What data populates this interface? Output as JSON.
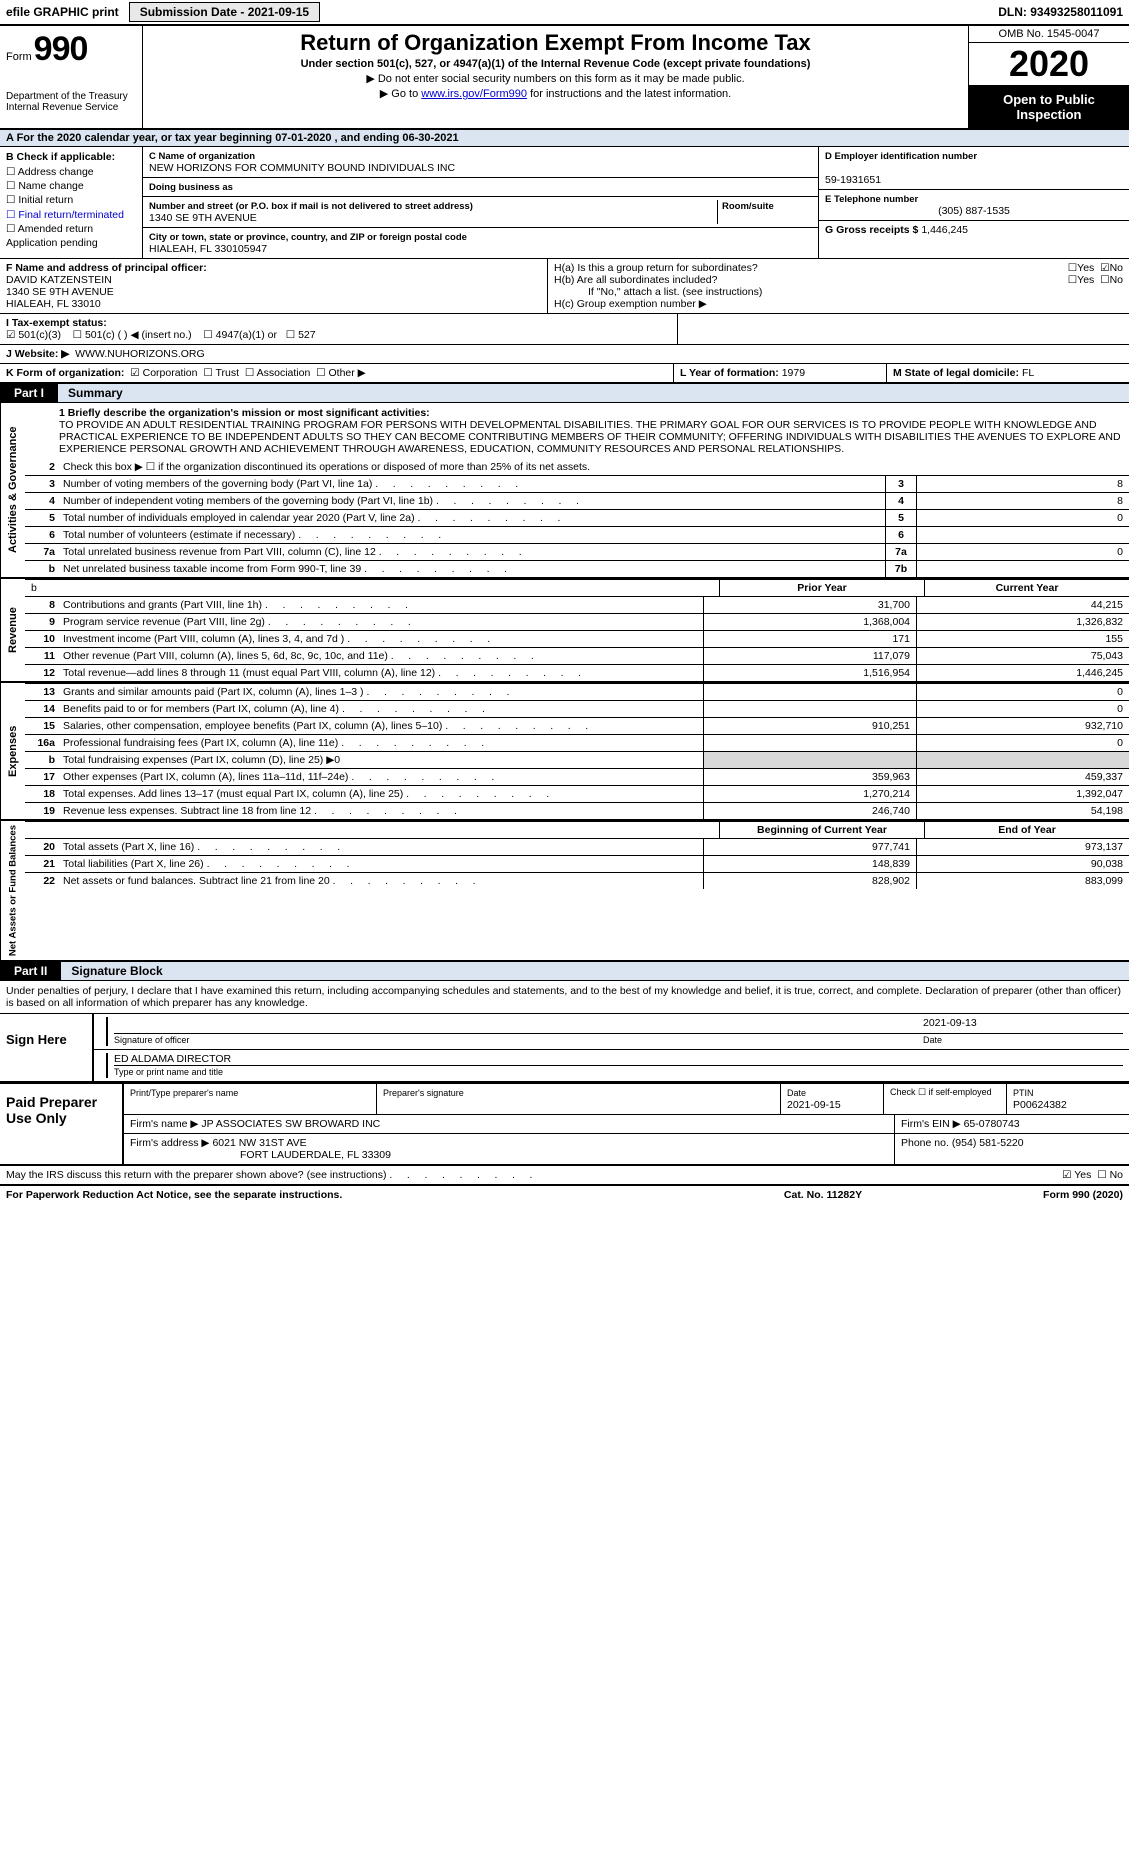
{
  "topbar": {
    "efile": "efile GRAPHIC print",
    "submission": "Submission Date - 2021-09-15",
    "dln": "DLN: 93493258011091"
  },
  "header": {
    "form_word": "Form",
    "form_no": "990",
    "dept1": "Department of the Treasury",
    "dept2": "Internal Revenue Service",
    "title": "Return of Organization Exempt From Income Tax",
    "sub": "Under section 501(c), 527, or 4947(a)(1) of the Internal Revenue Code (except private foundations)",
    "note1": "▶ Do not enter social security numbers on this form as it may be made public.",
    "note2_pre": "▶ Go to ",
    "note2_link": "www.irs.gov/Form990",
    "note2_post": " for instructions and the latest information.",
    "omb": "OMB No. 1545-0047",
    "year": "2020",
    "open": "Open to Public Inspection"
  },
  "rowA": "A   For the 2020 calendar year, or tax year beginning 07-01-2020   , and ending 06-30-2021",
  "sectionB": {
    "label": "B Check if applicable:",
    "opts": [
      "Address change",
      "Name change",
      "Initial return",
      "Final return/terminated",
      "Amended return",
      "Application pending"
    ]
  },
  "sectionC": {
    "name_lbl": "C Name of organization",
    "name": "NEW HORIZONS FOR COMMUNITY BOUND INDIVIDUALS INC",
    "dba_lbl": "Doing business as",
    "addr_lbl": "Number and street (or P.O. box if mail is not delivered to street address)",
    "room_lbl": "Room/suite",
    "addr": "1340 SE 9TH AVENUE",
    "city_lbl": "City or town, state or province, country, and ZIP or foreign postal code",
    "city": "HIALEAH, FL   330105947"
  },
  "sectionD": {
    "lbl": "D Employer identification number",
    "val": "59-1931651"
  },
  "sectionE": {
    "lbl": "E Telephone number",
    "val": "(305) 887-1535"
  },
  "sectionG": {
    "lbl": "G Gross receipts $",
    "val": "1,446,245"
  },
  "sectionF": {
    "lbl": "F  Name and address of principal officer:",
    "l1": "DAVID KATZENSTEIN",
    "l2": "1340 SE 9TH AVENUE",
    "l3": "HIALEAH, FL  33010"
  },
  "sectionH": {
    "a": "H(a)  Is this a group return for subordinates?",
    "b": "H(b)  Are all subordinates included?",
    "bnote": "If \"No,\" attach a list. (see instructions)",
    "c": "H(c)  Group exemption number ▶",
    "yes": "Yes",
    "no": "No"
  },
  "sectionI": {
    "lbl": "I   Tax-exempt status:",
    "o1": "501(c)(3)",
    "o2": "501(c) (  ) ◀ (insert no.)",
    "o3": "4947(a)(1) or",
    "o4": "527"
  },
  "sectionJ": {
    "lbl": "J   Website: ▶",
    "val": "WWW.NUHORIZONS.ORG"
  },
  "sectionK": {
    "lbl": "K Form of organization:",
    "o1": "Corporation",
    "o2": "Trust",
    "o3": "Association",
    "o4": "Other ▶"
  },
  "sectionL": {
    "lbl": "L Year of formation:",
    "val": "1979"
  },
  "sectionM": {
    "lbl": "M State of legal domicile:",
    "val": "FL"
  },
  "part1": {
    "tag": "Part I",
    "title": "Summary"
  },
  "mission_lbl": "1   Briefly describe the organization's mission or most significant activities:",
  "mission": "TO PROVIDE AN ADULT RESIDENTIAL TRAINING PROGRAM FOR PERSONS WITH DEVELOPMENTAL DISABILITIES. THE PRIMARY GOAL FOR OUR SERVICES IS TO PROVIDE PEOPLE WITH KNOWLEDGE AND PRACTICAL EXPERIENCE TO BE INDEPENDENT ADULTS SO THEY CAN BECOME CONTRIBUTING MEMBERS OF THEIR COMMUNITY; OFFERING INDIVIDUALS WITH DISABILITIES THE AVENUES TO EXPLORE AND EXPERIENCE PERSONAL GROWTH AND ACHIEVEMENT THROUGH AWARENESS, EDUCATION, COMMUNITY RESOURCES AND PERSONAL RELATIONSHIPS.",
  "lines_gov": [
    {
      "no": "2",
      "txt": "Check this box ▶ ☐  if the organization discontinued its operations or disposed of more than 25% of its net assets.",
      "box": "",
      "val": ""
    },
    {
      "no": "3",
      "txt": "Number of voting members of the governing body (Part VI, line 1a)",
      "box": "3",
      "val": "8"
    },
    {
      "no": "4",
      "txt": "Number of independent voting members of the governing body (Part VI, line 1b)",
      "box": "4",
      "val": "8"
    },
    {
      "no": "5",
      "txt": "Total number of individuals employed in calendar year 2020 (Part V, line 2a)",
      "box": "5",
      "val": "0"
    },
    {
      "no": "6",
      "txt": "Total number of volunteers (estimate if necessary)",
      "box": "6",
      "val": ""
    },
    {
      "no": "7a",
      "txt": "Total unrelated business revenue from Part VIII, column (C), line 12",
      "box": "7a",
      "val": "0"
    },
    {
      "no": "b",
      "txt": "Net unrelated business taxable income from Form 990-T, line 39",
      "box": "7b",
      "val": ""
    }
  ],
  "hdr_prior": "Prior Year",
  "hdr_curr": "Current Year",
  "revenue": [
    {
      "no": "8",
      "txt": "Contributions and grants (Part VIII, line 1h)",
      "c1": "31,700",
      "c2": "44,215"
    },
    {
      "no": "9",
      "txt": "Program service revenue (Part VIII, line 2g)",
      "c1": "1,368,004",
      "c2": "1,326,832"
    },
    {
      "no": "10",
      "txt": "Investment income (Part VIII, column (A), lines 3, 4, and 7d )",
      "c1": "171",
      "c2": "155"
    },
    {
      "no": "11",
      "txt": "Other revenue (Part VIII, column (A), lines 5, 6d, 8c, 9c, 10c, and 11e)",
      "c1": "117,079",
      "c2": "75,043"
    },
    {
      "no": "12",
      "txt": "Total revenue—add lines 8 through 11 (must equal Part VIII, column (A), line 12)",
      "c1": "1,516,954",
      "c2": "1,446,245"
    }
  ],
  "expenses": [
    {
      "no": "13",
      "txt": "Grants and similar amounts paid (Part IX, column (A), lines 1–3 )",
      "c1": "",
      "c2": "0"
    },
    {
      "no": "14",
      "txt": "Benefits paid to or for members (Part IX, column (A), line 4)",
      "c1": "",
      "c2": "0"
    },
    {
      "no": "15",
      "txt": "Salaries, other compensation, employee benefits (Part IX, column (A), lines 5–10)",
      "c1": "910,251",
      "c2": "932,710"
    },
    {
      "no": "16a",
      "txt": "Professional fundraising fees (Part IX, column (A), line 11e)",
      "c1": "",
      "c2": "0"
    },
    {
      "no": "b",
      "txt": "Total fundraising expenses (Part IX, column (D), line 25) ▶0",
      "c1": "—",
      "c2": "—"
    },
    {
      "no": "17",
      "txt": "Other expenses (Part IX, column (A), lines 11a–11d, 11f–24e)",
      "c1": "359,963",
      "c2": "459,337"
    },
    {
      "no": "18",
      "txt": "Total expenses. Add lines 13–17 (must equal Part IX, column (A), line 25)",
      "c1": "1,270,214",
      "c2": "1,392,047"
    },
    {
      "no": "19",
      "txt": "Revenue less expenses. Subtract line 18 from line 12",
      "c1": "246,740",
      "c2": "54,198"
    }
  ],
  "hdr_beg": "Beginning of Current Year",
  "hdr_end": "End of Year",
  "netassets": [
    {
      "no": "20",
      "txt": "Total assets (Part X, line 16)",
      "c1": "977,741",
      "c2": "973,137"
    },
    {
      "no": "21",
      "txt": "Total liabilities (Part X, line 26)",
      "c1": "148,839",
      "c2": "90,038"
    },
    {
      "no": "22",
      "txt": "Net assets or fund balances. Subtract line 21 from line 20",
      "c1": "828,902",
      "c2": "883,099"
    }
  ],
  "vlabels": {
    "gov": "Activities & Governance",
    "rev": "Revenue",
    "exp": "Expenses",
    "net": "Net Assets or Fund Balances"
  },
  "part2": {
    "tag": "Part II",
    "title": "Signature Block"
  },
  "sig_intro": "Under penalties of perjury, I declare that I have examined this return, including accompanying schedules and statements, and to the best of my knowledge and belief, it is true, correct, and complete. Declaration of preparer (other than officer) is based on all information of which preparer has any knowledge.",
  "sign": {
    "here": "Sign Here",
    "sig_of": "Signature of officer",
    "date_lbl": "Date",
    "date": "2021-09-13",
    "name": "ED ALDAMA  DIRECTOR",
    "name_lbl": "Type or print name and title"
  },
  "paid": {
    "lbl": "Paid Preparer Use Only",
    "h1": "Print/Type preparer's name",
    "h2": "Preparer's signature",
    "h3": "Date",
    "h3v": "2021-09-15",
    "h4": "Check ☐ if self-employed",
    "h5": "PTIN",
    "h5v": "P00624382",
    "firm_lbl": "Firm's name    ▶",
    "firm": "JP ASSOCIATES SW BROWARD INC",
    "ein_lbl": "Firm's EIN ▶",
    "ein": "65-0780743",
    "addr_lbl": "Firm's address ▶",
    "addr1": "6021 NW 31ST AVE",
    "addr2": "FORT LAUDERDALE, FL  33309",
    "phone_lbl": "Phone no.",
    "phone": "(954) 581-5220"
  },
  "may": "May the IRS discuss this return with the preparer shown above? (see instructions)",
  "may_yes": "Yes",
  "may_no": "No",
  "footer": {
    "l": "For Paperwork Reduction Act Notice, see the separate instructions.",
    "m": "Cat. No. 11282Y",
    "r": "Form 990 (2020)"
  }
}
